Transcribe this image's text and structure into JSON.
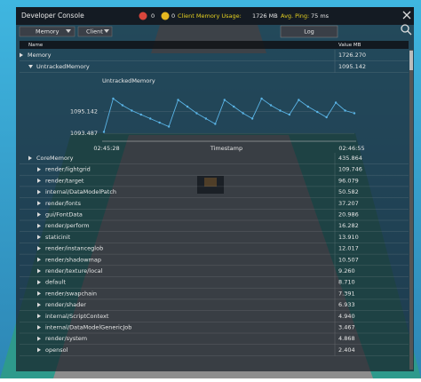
{
  "header": {
    "title": "Developer Console",
    "error_count": 0,
    "warning_count": 0,
    "memory_label": "Client Memory Usage:",
    "memory_value": "1726 MB",
    "ping_label": "Avg. Ping:",
    "ping_value": "75 ms"
  },
  "toolbar": {
    "view": "Memory",
    "target": "Client",
    "button": "Log"
  },
  "table": {
    "columns": [
      "Name",
      "Value MB"
    ],
    "rows": [
      {
        "name": "Memory",
        "value": "1726.270",
        "level": 0
      },
      {
        "name": "UntrackedMemory",
        "value": "1095.142",
        "level": 1
      },
      {
        "name": "CoreMemory",
        "value": "435.864",
        "level": 1
      },
      {
        "name": "render/lightgrid",
        "value": "109.746",
        "level": 2
      },
      {
        "name": "render/target",
        "value": "96.079",
        "level": 2
      },
      {
        "name": "internal/DataModelPatch",
        "value": "50.582",
        "level": 2
      },
      {
        "name": "render/fonts",
        "value": "37.207",
        "level": 2
      },
      {
        "name": "gui/FontData",
        "value": "20.986",
        "level": 2
      },
      {
        "name": "render/perform",
        "value": "16.282",
        "level": 2
      },
      {
        "name": "staticinit",
        "value": "13.910",
        "level": 2
      },
      {
        "name": "render/instanceglob",
        "value": "12.017",
        "level": 2
      },
      {
        "name": "render/shadowmap",
        "value": "10.507",
        "level": 2
      },
      {
        "name": "render/texture/local",
        "value": "9.260",
        "level": 2
      },
      {
        "name": "default",
        "value": "8.710",
        "level": 2
      },
      {
        "name": "render/swapchain",
        "value": "7.391",
        "level": 2
      },
      {
        "name": "render/shader",
        "value": "6.933",
        "level": 2
      },
      {
        "name": "internal/ScriptContext",
        "value": "4.940",
        "level": 2
      },
      {
        "name": "internal/DataModelGenericJob",
        "value": "3.467",
        "level": 2
      },
      {
        "name": "render/system",
        "value": "4.868",
        "level": 2
      },
      {
        "name": "opensol",
        "value": "2.404",
        "level": 2
      }
    ]
  },
  "chart_data": {
    "type": "line",
    "title": "UntrackedMemory",
    "x_label": "Timestamp",
    "x_start": "02:45:28",
    "x_end": "02:46:55",
    "color": "#5ab4e6",
    "values": [
      1093.6,
      1096.1,
      1095.6,
      1095.2,
      1094.9,
      1094.6,
      1094.3,
      1094.0,
      1096.0,
      1095.5,
      1095.0,
      1094.6,
      1094.2,
      1096.0,
      1095.5,
      1095.0,
      1094.6,
      1096.1,
      1095.6,
      1095.2,
      1094.9,
      1096.0,
      1095.5,
      1095.1,
      1094.7,
      1095.8,
      1095.2,
      1095.0
    ],
    "ylim": [
      1093.3,
      1096.5
    ],
    "yticks": [
      1095.142,
      1093.487
    ]
  }
}
